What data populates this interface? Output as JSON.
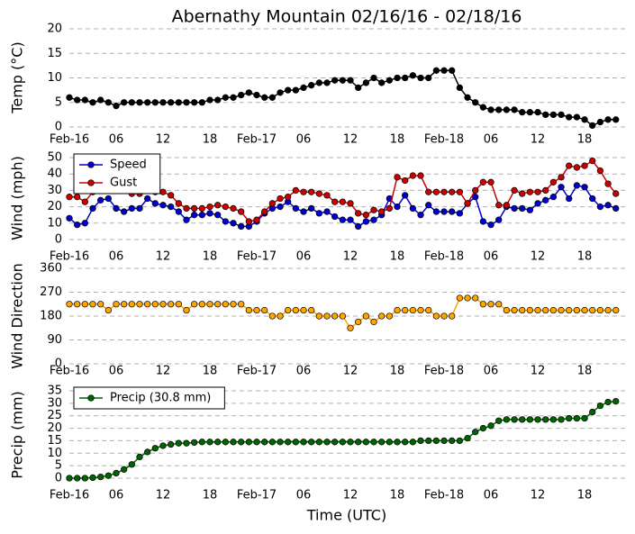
{
  "chart_data": [
    {
      "type": "line",
      "title": "Abernathy Mountain 02/16/16 - 02/18/16",
      "ylabel": "Temp (°C)",
      "x": [
        0,
        1,
        2,
        3,
        4,
        5,
        6,
        7,
        8,
        9,
        10,
        11,
        12,
        13,
        14,
        15,
        16,
        17,
        18,
        19,
        20,
        21,
        22,
        23,
        24,
        25,
        26,
        27,
        28,
        29,
        30,
        31,
        32,
        33,
        34,
        35,
        36,
        37,
        38,
        39,
        40,
        41,
        42,
        43,
        44,
        45,
        46,
        47,
        48,
        49,
        50,
        51,
        52,
        53,
        54,
        55,
        56,
        57,
        58,
        59,
        60,
        61,
        62,
        63,
        64,
        65,
        66,
        67,
        68,
        69,
        70
      ],
      "series": [
        {
          "color": "#000000",
          "values": [
            6,
            5.5,
            5.5,
            5,
            5.5,
            5,
            4.3,
            5,
            5,
            5,
            5,
            5,
            5,
            5,
            5,
            5,
            5,
            5,
            5.5,
            5.5,
            6,
            6,
            6.5,
            7,
            6.5,
            6,
            6,
            7,
            7.5,
            7.5,
            8,
            8.5,
            9,
            9,
            9.5,
            9.5,
            9.5,
            8,
            9,
            10,
            9,
            9.5,
            10,
            10,
            10.5,
            10,
            10,
            11.5,
            11.5,
            11.5,
            8,
            6,
            5,
            4,
            3.5,
            3.5,
            3.5,
            3.5,
            3,
            3,
            3,
            2.5,
            2.5,
            2.5,
            2,
            2,
            1.5,
            0.3,
            1,
            1.5,
            1.5
          ]
        }
      ],
      "xlim": [
        0,
        71.3
      ],
      "xticks": [
        {
          "value": 0,
          "label": "Feb-16"
        },
        {
          "value": 6,
          "label": "06"
        },
        {
          "value": 12,
          "label": "12"
        },
        {
          "value": 18,
          "label": "18"
        },
        {
          "value": 24,
          "label": "Feb-17"
        },
        {
          "value": 30,
          "label": "06"
        },
        {
          "value": 36,
          "label": "12"
        },
        {
          "value": 42,
          "label": "18"
        },
        {
          "value": 48,
          "label": "Feb-18"
        },
        {
          "value": 54,
          "label": "06"
        },
        {
          "value": 60,
          "label": "12"
        },
        {
          "value": 66,
          "label": "18"
        }
      ],
      "ylim": [
        0,
        20
      ],
      "yticks": [
        0,
        5,
        10,
        15,
        20
      ],
      "grid": true
    },
    {
      "type": "line",
      "ylabel": "Wind (mph)",
      "x": [
        0,
        1,
        2,
        3,
        4,
        5,
        6,
        7,
        8,
        9,
        10,
        11,
        12,
        13,
        14,
        15,
        16,
        17,
        18,
        19,
        20,
        21,
        22,
        23,
        24,
        25,
        26,
        27,
        28,
        29,
        30,
        31,
        32,
        33,
        34,
        35,
        36,
        37,
        38,
        39,
        40,
        41,
        42,
        43,
        44,
        45,
        46,
        47,
        48,
        49,
        50,
        51,
        52,
        53,
        54,
        55,
        56,
        57,
        58,
        59,
        60,
        61,
        62,
        63,
        64,
        65,
        66,
        67,
        68,
        69,
        70
      ],
      "series": [
        {
          "name": "Speed",
          "color": "#0000cc",
          "values": [
            13,
            9,
            10,
            19,
            24,
            25,
            19,
            17,
            19,
            19,
            25,
            22,
            21,
            20,
            17,
            12,
            15,
            15,
            16,
            15,
            11,
            10,
            8,
            8,
            11,
            16,
            19,
            20,
            23,
            19,
            17,
            19,
            16,
            17,
            14,
            12,
            12,
            8,
            11,
            12,
            15,
            25,
            20,
            27,
            19,
            15,
            21,
            17,
            17,
            17,
            16,
            22,
            26,
            11,
            9,
            12,
            20,
            19,
            19,
            18,
            22,
            24,
            26,
            32,
            25,
            33,
            32,
            25,
            20,
            21,
            19
          ]
        },
        {
          "name": "Gust",
          "color": "#cc0000",
          "values": [
            26,
            26,
            23,
            29,
            31,
            31,
            30,
            30,
            28,
            28,
            31,
            29,
            29,
            27,
            22,
            19,
            19,
            19,
            20,
            21,
            20,
            19,
            17,
            11,
            12,
            17,
            22,
            25,
            26,
            30,
            29,
            29,
            28,
            27,
            23,
            23,
            22,
            16,
            15,
            18,
            17,
            19,
            38,
            36,
            39,
            39,
            29,
            29,
            29,
            29,
            29,
            22,
            30,
            35,
            35,
            21,
            21,
            30,
            28,
            29,
            29,
            30,
            35,
            38,
            45,
            44,
            45,
            48,
            42,
            34,
            28
          ]
        }
      ],
      "xlim": [
        0,
        71.3
      ],
      "xticks": [
        {
          "value": 0,
          "label": "Feb-16"
        },
        {
          "value": 6,
          "label": "06"
        },
        {
          "value": 12,
          "label": "12"
        },
        {
          "value": 18,
          "label": "18"
        },
        {
          "value": 24,
          "label": "Feb-17"
        },
        {
          "value": 30,
          "label": "06"
        },
        {
          "value": 36,
          "label": "12"
        },
        {
          "value": 42,
          "label": "18"
        },
        {
          "value": 48,
          "label": "Feb-18"
        },
        {
          "value": 54,
          "label": "06"
        },
        {
          "value": 60,
          "label": "12"
        },
        {
          "value": 66,
          "label": "18"
        }
      ],
      "ylim": [
        0,
        50
      ],
      "yticks": [
        0,
        10,
        20,
        30,
        40,
        50
      ],
      "grid": true,
      "legend": "upper left"
    },
    {
      "type": "line",
      "ylabel": "Wind Direction",
      "x": [
        0,
        1,
        2,
        3,
        4,
        5,
        6,
        7,
        8,
        9,
        10,
        11,
        12,
        13,
        14,
        15,
        16,
        17,
        18,
        19,
        20,
        21,
        22,
        23,
        24,
        25,
        26,
        27,
        28,
        29,
        30,
        31,
        32,
        33,
        34,
        35,
        36,
        37,
        38,
        39,
        40,
        41,
        42,
        43,
        44,
        45,
        46,
        47,
        48,
        49,
        50,
        51,
        52,
        53,
        54,
        55,
        56,
        57,
        58,
        59,
        60,
        61,
        62,
        63,
        64,
        65,
        66,
        67,
        68,
        69,
        70
      ],
      "series": [
        {
          "color": "#ffa500",
          "values": [
            225,
            225,
            225,
            225,
            225,
            202,
            225,
            225,
            225,
            225,
            225,
            225,
            225,
            225,
            225,
            202,
            225,
            225,
            225,
            225,
            225,
            225,
            225,
            202,
            202,
            202,
            180,
            180,
            202,
            202,
            202,
            202,
            180,
            180,
            180,
            180,
            135,
            158,
            180,
            158,
            180,
            180,
            202,
            202,
            202,
            202,
            202,
            180,
            180,
            180,
            248,
            248,
            248,
            225,
            225,
            225,
            202,
            202,
            202,
            202,
            202,
            202,
            202,
            202,
            202,
            202,
            202,
            202,
            202,
            202,
            202
          ]
        }
      ],
      "xlim": [
        0,
        71.3
      ],
      "xticks": [
        {
          "value": 0,
          "label": "Feb-16"
        },
        {
          "value": 6,
          "label": "06"
        },
        {
          "value": 12,
          "label": "12"
        },
        {
          "value": 18,
          "label": "18"
        },
        {
          "value": 24,
          "label": "Feb-17"
        },
        {
          "value": 30,
          "label": "06"
        },
        {
          "value": 36,
          "label": "12"
        },
        {
          "value": 42,
          "label": "18"
        },
        {
          "value": 48,
          "label": "Feb-18"
        },
        {
          "value": 54,
          "label": "06"
        },
        {
          "value": 60,
          "label": "12"
        },
        {
          "value": 66,
          "label": "18"
        }
      ],
      "ylim": [
        0,
        360
      ],
      "yticks": [
        0,
        90,
        180,
        270,
        360
      ],
      "grid": true
    },
    {
      "type": "line",
      "ylabel": "Precip (mm)",
      "xlabel": "Time (UTC)",
      "x": [
        0,
        1,
        2,
        3,
        4,
        5,
        6,
        7,
        8,
        9,
        10,
        11,
        12,
        13,
        14,
        15,
        16,
        17,
        18,
        19,
        20,
        21,
        22,
        23,
        24,
        25,
        26,
        27,
        28,
        29,
        30,
        31,
        32,
        33,
        34,
        35,
        36,
        37,
        38,
        39,
        40,
        41,
        42,
        43,
        44,
        45,
        46,
        47,
        48,
        49,
        50,
        51,
        52,
        53,
        54,
        55,
        56,
        57,
        58,
        59,
        60,
        61,
        62,
        63,
        64,
        65,
        66,
        67,
        68,
        69,
        70
      ],
      "series": [
        {
          "name": "Precip (30.8 mm)",
          "color": "#006400",
          "values": [
            0,
            0,
            0,
            0.2,
            0.5,
            1,
            2,
            3.5,
            5.5,
            8.5,
            10.5,
            12,
            13,
            13.5,
            14,
            14,
            14.3,
            14.5,
            14.5,
            14.5,
            14.5,
            14.5,
            14.5,
            14.5,
            14.5,
            14.5,
            14.5,
            14.5,
            14.5,
            14.5,
            14.5,
            14.5,
            14.5,
            14.5,
            14.5,
            14.5,
            14.5,
            14.5,
            14.5,
            14.5,
            14.5,
            14.5,
            14.5,
            14.5,
            14.5,
            15,
            15,
            15,
            15,
            15,
            15,
            16,
            18.5,
            20,
            21,
            23,
            23.5,
            23.5,
            23.5,
            23.5,
            23.5,
            23.5,
            23.5,
            23.5,
            24,
            24,
            24,
            26.5,
            29,
            30.5,
            30.8
          ]
        }
      ],
      "xlim": [
        0,
        71.3
      ],
      "xticks": [
        {
          "value": 0,
          "label": "Feb-16"
        },
        {
          "value": 6,
          "label": "06"
        },
        {
          "value": 12,
          "label": "12"
        },
        {
          "value": 18,
          "label": "18"
        },
        {
          "value": 24,
          "label": "Feb-17"
        },
        {
          "value": 30,
          "label": "06"
        },
        {
          "value": 36,
          "label": "12"
        },
        {
          "value": 42,
          "label": "18"
        },
        {
          "value": 48,
          "label": "Feb-18"
        },
        {
          "value": 54,
          "label": "06"
        },
        {
          "value": 60,
          "label": "12"
        },
        {
          "value": 66,
          "label": "18"
        }
      ],
      "ylim": [
        0,
        35
      ],
      "yticks": [
        0,
        5,
        10,
        15,
        20,
        25,
        30,
        35
      ],
      "grid": true,
      "legend": "upper left"
    }
  ]
}
